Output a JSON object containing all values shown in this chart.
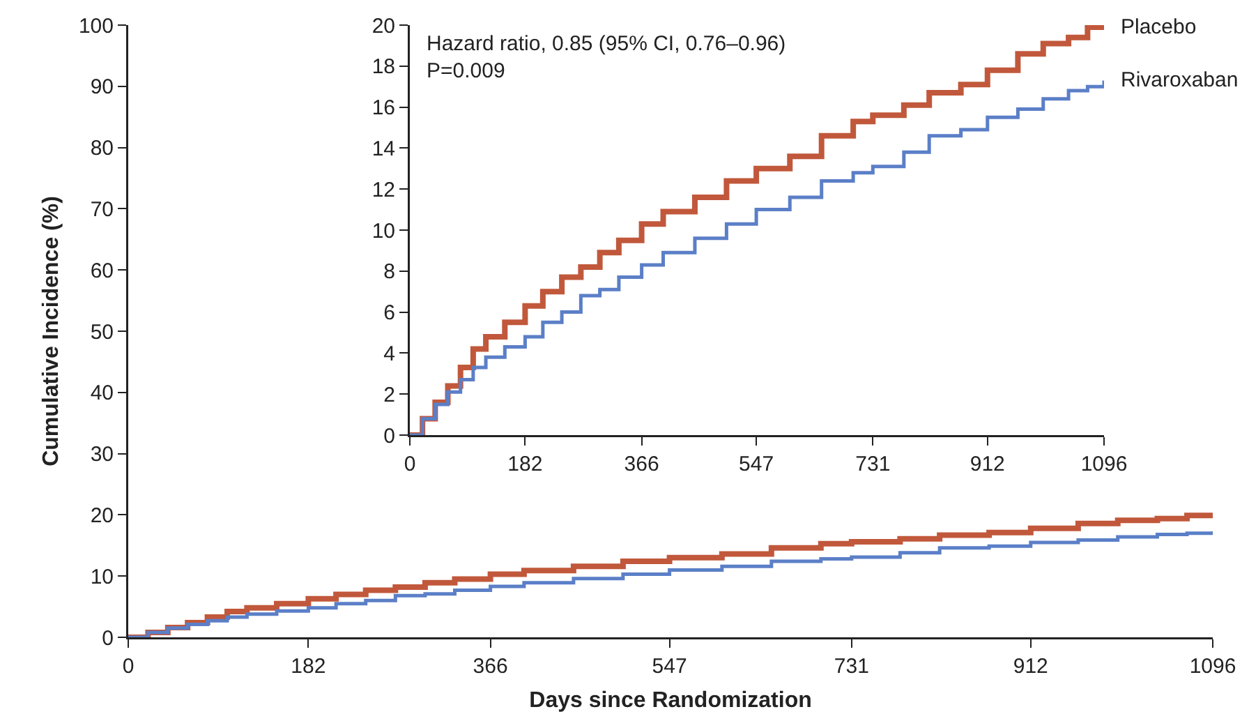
{
  "chart_data": [
    {
      "type": "step",
      "xlabel": "Days since Randomization",
      "ylabel": "Cumulative Incidence (%)",
      "xlim": [
        0,
        1096
      ],
      "xticks": [
        0,
        182,
        366,
        547,
        731,
        912,
        1096
      ],
      "ylim": [
        0,
        100
      ],
      "yticks": [
        0,
        10,
        20,
        30,
        40,
        50,
        60,
        70,
        80,
        90,
        100
      ],
      "grid": false,
      "legend": false,
      "x": [
        0,
        20,
        40,
        60,
        80,
        100,
        120,
        150,
        182,
        210,
        240,
        270,
        300,
        330,
        366,
        400,
        450,
        500,
        547,
        600,
        650,
        700,
        731,
        780,
        820,
        870,
        912,
        960,
        1000,
        1040,
        1070,
        1096
      ],
      "series": [
        {
          "color": "#c1583b",
          "values": [
            0,
            0.8,
            1.6,
            2.4,
            3.3,
            4.2,
            4.8,
            5.5,
            6.3,
            7.0,
            7.7,
            8.2,
            8.9,
            9.5,
            10.3,
            10.9,
            11.6,
            12.4,
            13.0,
            13.6,
            14.6,
            15.3,
            15.6,
            16.1,
            16.7,
            17.1,
            17.8,
            18.6,
            19.1,
            19.4,
            19.9,
            19.9
          ]
        },
        {
          "color": "#5b7fc7",
          "values": [
            0,
            0.8,
            1.5,
            2.1,
            2.7,
            3.3,
            3.8,
            4.3,
            4.8,
            5.5,
            6.0,
            6.8,
            7.1,
            7.7,
            8.3,
            8.9,
            9.6,
            10.3,
            11.0,
            11.6,
            12.4,
            12.8,
            13.1,
            13.8,
            14.6,
            14.9,
            15.5,
            15.9,
            16.4,
            16.8,
            17.0,
            17.3
          ]
        }
      ]
    },
    {
      "type": "step",
      "xlim": [
        0,
        1096
      ],
      "xticks": [
        0,
        182,
        366,
        547,
        731,
        912,
        1096
      ],
      "ylim": [
        0,
        20
      ],
      "yticks": [
        0,
        2,
        4,
        6,
        8,
        10,
        12,
        14,
        16,
        18,
        20
      ],
      "grid": false,
      "legend": false,
      "annotations": [
        "Hazard ratio, 0.85 (95% CI, 0.76–0.96)\nP=0.009"
      ],
      "x": [
        0,
        20,
        40,
        60,
        80,
        100,
        120,
        150,
        182,
        210,
        240,
        270,
        300,
        330,
        366,
        400,
        450,
        500,
        547,
        600,
        650,
        700,
        731,
        780,
        820,
        870,
        912,
        960,
        1000,
        1040,
        1070,
        1096
      ],
      "series": [
        {
          "name": "Placebo",
          "color": "#c1583b",
          "values": [
            0,
            0.8,
            1.6,
            2.4,
            3.3,
            4.2,
            4.8,
            5.5,
            6.3,
            7.0,
            7.7,
            8.2,
            8.9,
            9.5,
            10.3,
            10.9,
            11.6,
            12.4,
            13.0,
            13.6,
            14.6,
            15.3,
            15.6,
            16.1,
            16.7,
            17.1,
            17.8,
            18.6,
            19.1,
            19.4,
            19.9,
            19.9
          ]
        },
        {
          "name": "Rivaroxaban",
          "color": "#5b7fc7",
          "values": [
            0,
            0.8,
            1.5,
            2.1,
            2.7,
            3.3,
            3.8,
            4.3,
            4.8,
            5.5,
            6.0,
            6.8,
            7.1,
            7.7,
            8.3,
            8.9,
            9.6,
            10.3,
            11.0,
            11.6,
            12.4,
            12.8,
            13.1,
            13.8,
            14.6,
            14.9,
            15.5,
            15.9,
            16.4,
            16.8,
            17.0,
            17.3
          ]
        }
      ]
    }
  ]
}
